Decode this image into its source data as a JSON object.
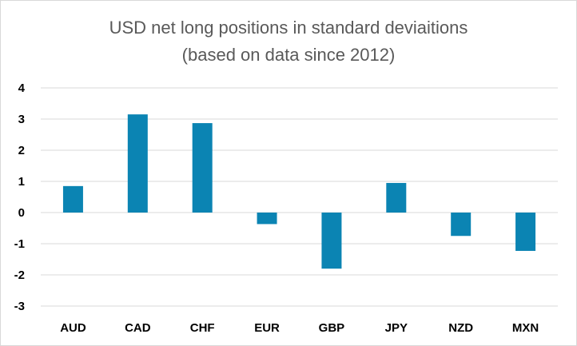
{
  "chart_data": {
    "type": "bar",
    "title": "USD net long positions in standard deviaitions",
    "subtitle": "(based on data since 2012)",
    "categories": [
      "AUD",
      "CAD",
      "CHF",
      "EUR",
      "GBP",
      "JPY",
      "NZD",
      "MXN"
    ],
    "values": [
      0.85,
      3.15,
      2.87,
      -0.37,
      -1.8,
      0.95,
      -0.75,
      -1.23
    ],
    "ylim": [
      -3,
      4
    ],
    "yticks": [
      "4",
      "3",
      "2",
      "1",
      "0",
      "-1",
      "-2",
      "-3"
    ],
    "xlabel": "",
    "ylabel": "",
    "grid": true,
    "legend": "none",
    "colors": {
      "bar": "#0b84b3",
      "grid": "#d9d9d9",
      "title": "#595959"
    }
  }
}
